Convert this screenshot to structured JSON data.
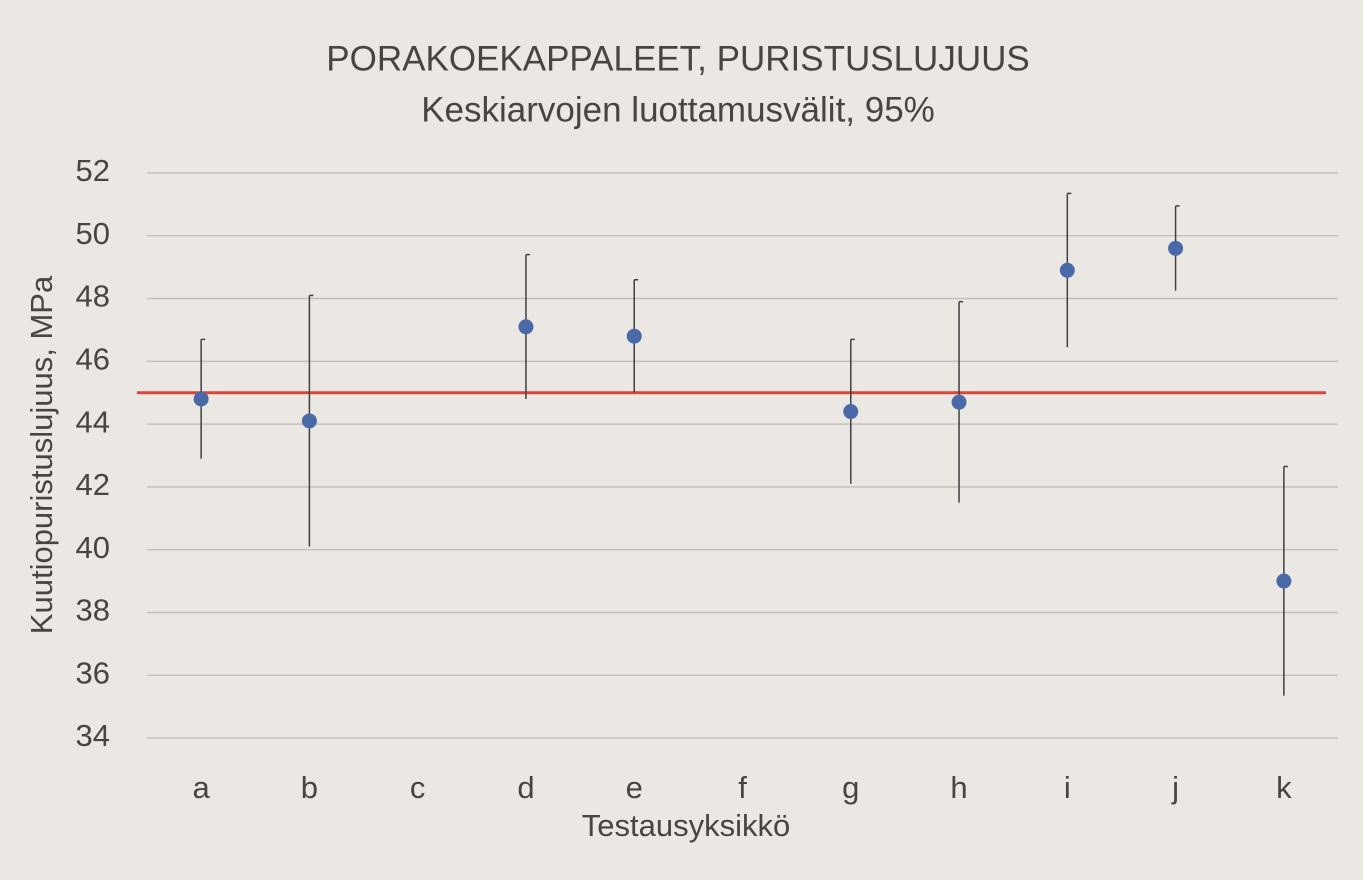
{
  "chart_data": {
    "type": "errorbar",
    "title": "PORAKOEKAPPALEET, PURISTUSLUJUUS",
    "subtitle": "Keskiarvojen luottamusvälit, 95%",
    "x_label": "Testausyksikkö",
    "y_label": "Kuutiopuristuslujuus, MPa",
    "categories": [
      "a",
      "b",
      "c",
      "d",
      "e",
      "f",
      "g",
      "h",
      "i",
      "j",
      "k"
    ],
    "values": [
      44.8,
      44.1,
      null,
      47.1,
      46.8,
      null,
      44.4,
      44.7,
      48.9,
      49.6,
      39.0
    ],
    "errors": [
      1.9,
      4.0,
      null,
      2.3,
      1.8,
      null,
      2.3,
      3.2,
      2.45,
      1.35,
      3.65
    ],
    "color": "#4a69a8",
    "error_color": "#404040",
    "reference_line": 45,
    "reference_color": "#d9463b",
    "ylim": [
      34,
      52
    ],
    "yticks": [
      34,
      36,
      38,
      40,
      42,
      44,
      46,
      48,
      50,
      52
    ],
    "grid": true
  }
}
